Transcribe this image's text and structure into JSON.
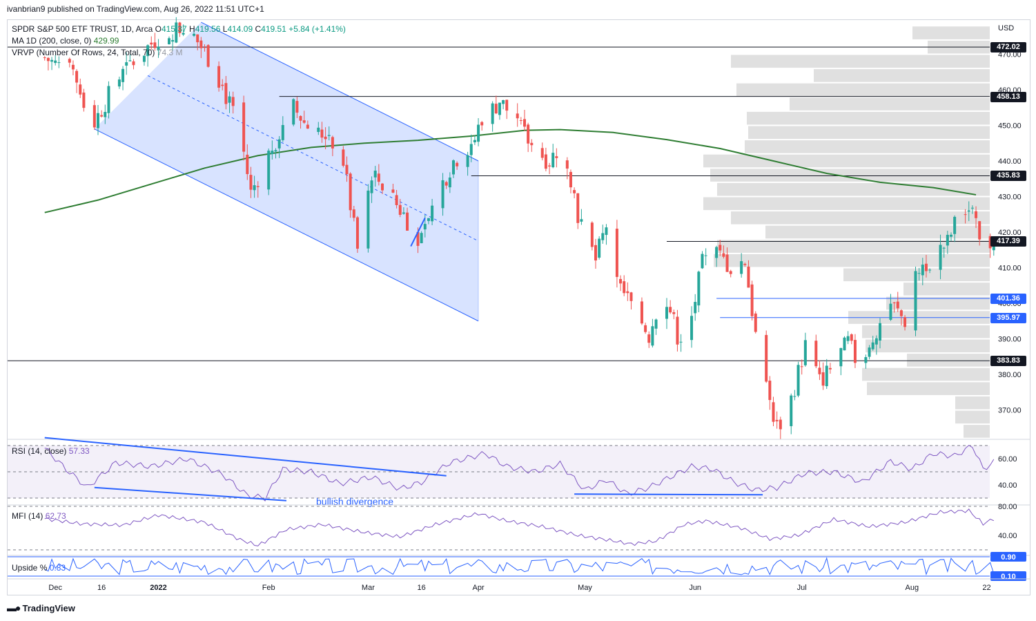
{
  "header": {
    "publisher": "ivanbrian9 published on TradingView.com, Aug 26, 2022 11:51 UTC+1"
  },
  "legend": {
    "symbol": "SPDR S&P 500 ETF TRUST, 1D, Arca",
    "o_label": "O",
    "o_value": "415.37",
    "h_label": "H",
    "h_value": "419.56",
    "l_label": "L",
    "l_value": "414.09",
    "c_label": "C",
    "c_value": "419.51",
    "change": "+5.84 (+1.41%)",
    "ma_label": "MA 1D (200, close, 0)",
    "ma_value": "429.99",
    "vrvp_label": "VRVP (Number Of Rows, 24, Total, 70)",
    "vrvp_value": "74.3 M",
    "rsi_label": "RSI (14, close)",
    "rsi_value": "57.33",
    "mfi_label": "MFI (14)",
    "mfi_value": "62.73",
    "upside_label": "Upside %",
    "upside_value": "0.83"
  },
  "branding": {
    "name": "TradingView",
    "logo_icon": "tradingview-logo-icon"
  },
  "colors": {
    "up": "#26a69a",
    "down": "#ef5350",
    "ma": "#2e7d32",
    "channel": "#2962ff",
    "channel_fill": "#2962ff",
    "oscillator": "#7e57c2",
    "vrvp": "#e0e0e0",
    "level": "#131722"
  },
  "chart_data": {
    "type": "candlestick",
    "currency": "USD",
    "price_axis": {
      "ticks": [
        "470.00",
        "460.00",
        "450.00",
        "440.00",
        "430.00",
        "420.00",
        "410.00",
        "400.00",
        "390.00",
        "380.00",
        "370.00"
      ]
    },
    "time_axis": {
      "labels": [
        {
          "label": "Dec",
          "day": 3
        },
        {
          "label": "16",
          "day": 16
        },
        {
          "label": "2022",
          "day": 32
        },
        {
          "label": "Feb",
          "day": 63
        },
        {
          "label": "Mar",
          "day": 91
        },
        {
          "label": "16",
          "day": 106
        },
        {
          "label": "Apr",
          "day": 122
        },
        {
          "label": "May",
          "day": 152
        },
        {
          "label": "Jun",
          "day": 183
        },
        {
          "label": "Jul",
          "day": 213
        },
        {
          "label": "Aug",
          "day": 244
        },
        {
          "label": "22",
          "day": 265
        }
      ]
    },
    "levels": [
      {
        "price": 472.02,
        "label": "472.02",
        "style": "black",
        "from_day": 0
      },
      {
        "price": 458.13,
        "label": "458.13",
        "style": "black",
        "from_day": 66
      },
      {
        "price": 435.83,
        "label": "435.83",
        "style": "black",
        "from_day": 120
      },
      {
        "price": 417.39,
        "label": "417.39",
        "style": "black",
        "from_day": 175
      },
      {
        "price": 401.36,
        "label": "401.36",
        "style": "blue",
        "from_day": 189
      },
      {
        "price": 395.97,
        "label": "395.97",
        "style": "blue",
        "from_day": 190
      },
      {
        "price": 383.83,
        "label": "383.83",
        "style": "black",
        "from_day": 0
      }
    ],
    "channel": {
      "upper": [
        {
          "day": 44,
          "price": 479
        },
        {
          "day": 122,
          "price": 440
        }
      ],
      "lower": [
        {
          "day": 14,
          "price": 449
        },
        {
          "day": 122,
          "price": 395
        }
      ],
      "mid": [
        {
          "day": 29,
          "price": 464
        },
        {
          "day": 122,
          "price": 417.5
        }
      ]
    },
    "trend_segment": [
      {
        "day": 103,
        "price": 416
      },
      {
        "day": 107,
        "price": 424
      }
    ],
    "moving_average_200": [
      {
        "day": 0,
        "price": 425.5
      },
      {
        "day": 15,
        "price": 429
      },
      {
        "day": 30,
        "price": 433.5
      },
      {
        "day": 45,
        "price": 438
      },
      {
        "day": 60,
        "price": 441.5
      },
      {
        "day": 75,
        "price": 443.8
      },
      {
        "day": 90,
        "price": 445
      },
      {
        "day": 105,
        "price": 445.8
      },
      {
        "day": 120,
        "price": 447
      },
      {
        "day": 135,
        "price": 448.6
      },
      {
        "day": 145,
        "price": 448.8
      },
      {
        "day": 160,
        "price": 448
      },
      {
        "day": 175,
        "price": 446
      },
      {
        "day": 190,
        "price": 443.5
      },
      {
        "day": 205,
        "price": 440
      },
      {
        "day": 220,
        "price": 436.5
      },
      {
        "day": 235,
        "price": 434
      },
      {
        "day": 250,
        "price": 432.5
      },
      {
        "day": 262,
        "price": 430.5
      }
    ],
    "vrvp_rows": [
      {
        "low": 474,
        "high": 478,
        "width": 112
      },
      {
        "low": 470,
        "high": 474,
        "width": 90
      },
      {
        "low": 466,
        "high": 470,
        "width": 375
      },
      {
        "low": 462,
        "high": 466,
        "width": 255
      },
      {
        "low": 458,
        "high": 462,
        "width": 367
      },
      {
        "low": 454,
        "high": 458,
        "width": 290
      },
      {
        "low": 450,
        "high": 454,
        "width": 352
      },
      {
        "low": 446,
        "high": 450,
        "width": 350
      },
      {
        "low": 442,
        "high": 446,
        "width": 355
      },
      {
        "low": 438,
        "high": 442,
        "width": 415
      },
      {
        "low": 434,
        "high": 438,
        "width": 405
      },
      {
        "low": 430,
        "high": 434,
        "width": 395
      },
      {
        "low": 426,
        "high": 430,
        "width": 415
      },
      {
        "low": 422,
        "high": 426,
        "width": 375
      },
      {
        "low": 418,
        "high": 422,
        "width": 325
      },
      {
        "low": 414,
        "high": 418,
        "width": 395
      },
      {
        "low": 410,
        "high": 414,
        "width": 400
      },
      {
        "low": 406,
        "high": 410,
        "width": 212
      },
      {
        "low": 402,
        "high": 406,
        "width": 125
      },
      {
        "low": 398,
        "high": 402,
        "width": 150
      },
      {
        "low": 394,
        "high": 398,
        "width": 205
      },
      {
        "low": 390,
        "high": 394,
        "width": 185
      },
      {
        "low": 386,
        "high": 390,
        "width": 180
      },
      {
        "low": 382,
        "high": 386,
        "width": 120
      },
      {
        "low": 378,
        "high": 382,
        "width": 185
      },
      {
        "low": 374,
        "high": 378,
        "width": 178
      },
      {
        "low": 370,
        "high": 374,
        "width": 50
      },
      {
        "low": 366,
        "high": 370,
        "width": 50
      },
      {
        "low": 362,
        "high": 366,
        "width": 38
      }
    ],
    "price_anchors": [
      {
        "day": 0,
        "price": 469
      },
      {
        "day": 7,
        "price": 465
      },
      {
        "day": 14,
        "price": 451
      },
      {
        "day": 20,
        "price": 462
      },
      {
        "day": 25,
        "price": 468
      },
      {
        "day": 32,
        "price": 475
      },
      {
        "day": 40,
        "price": 478
      },
      {
        "day": 48,
        "price": 466
      },
      {
        "day": 55,
        "price": 448
      },
      {
        "day": 58,
        "price": 431
      },
      {
        "day": 64,
        "price": 444
      },
      {
        "day": 70,
        "price": 455
      },
      {
        "day": 76,
        "price": 447
      },
      {
        "day": 80,
        "price": 448
      },
      {
        "day": 84,
        "price": 440
      },
      {
        "day": 88,
        "price": 415
      },
      {
        "day": 92,
        "price": 437
      },
      {
        "day": 96,
        "price": 432
      },
      {
        "day": 101,
        "price": 425
      },
      {
        "day": 106,
        "price": 417
      },
      {
        "day": 110,
        "price": 430
      },
      {
        "day": 115,
        "price": 440
      },
      {
        "day": 120,
        "price": 445
      },
      {
        "day": 124,
        "price": 452
      },
      {
        "day": 128,
        "price": 457
      },
      {
        "day": 132,
        "price": 452
      },
      {
        "day": 137,
        "price": 444
      },
      {
        "day": 142,
        "price": 440
      },
      {
        "day": 146,
        "price": 446
      },
      {
        "day": 150,
        "price": 425
      },
      {
        "day": 155,
        "price": 412
      },
      {
        "day": 158,
        "price": 422
      },
      {
        "day": 162,
        "price": 404
      },
      {
        "day": 166,
        "price": 398
      },
      {
        "day": 170,
        "price": 391
      },
      {
        "day": 174,
        "price": 405
      },
      {
        "day": 178,
        "price": 391
      },
      {
        "day": 181,
        "price": 391
      },
      {
        "day": 185,
        "price": 411
      },
      {
        "day": 189,
        "price": 414
      },
      {
        "day": 193,
        "price": 410
      },
      {
        "day": 197,
        "price": 412
      },
      {
        "day": 200,
        "price": 391
      },
      {
        "day": 203,
        "price": 376
      },
      {
        "day": 206,
        "price": 365
      },
      {
        "day": 210,
        "price": 373
      },
      {
        "day": 214,
        "price": 388
      },
      {
        "day": 218,
        "price": 378
      },
      {
        "day": 222,
        "price": 383
      },
      {
        "day": 226,
        "price": 389
      },
      {
        "day": 230,
        "price": 380
      },
      {
        "day": 234,
        "price": 393
      },
      {
        "day": 238,
        "price": 400
      },
      {
        "day": 242,
        "price": 395
      },
      {
        "day": 246,
        "price": 410
      },
      {
        "day": 250,
        "price": 413
      },
      {
        "day": 254,
        "price": 417
      },
      {
        "day": 258,
        "price": 427
      },
      {
        "day": 261,
        "price": 425
      },
      {
        "day": 264,
        "price": 413
      },
      {
        "day": 267,
        "price": 419.5
      }
    ],
    "rsi_anchors": [
      {
        "day": 0,
        "rsi": 68
      },
      {
        "day": 6,
        "rsi": 52
      },
      {
        "day": 12,
        "rsi": 38
      },
      {
        "day": 20,
        "rsi": 57
      },
      {
        "day": 30,
        "rsi": 54
      },
      {
        "day": 40,
        "rsi": 60
      },
      {
        "day": 50,
        "rsi": 48
      },
      {
        "day": 57,
        "rsi": 32
      },
      {
        "day": 62,
        "rsi": 30
      },
      {
        "day": 67,
        "rsi": 52
      },
      {
        "day": 75,
        "rsi": 50
      },
      {
        "day": 83,
        "rsi": 41
      },
      {
        "day": 92,
        "rsi": 46
      },
      {
        "day": 100,
        "rsi": 37
      },
      {
        "day": 106,
        "rsi": 42
      },
      {
        "day": 114,
        "rsi": 57
      },
      {
        "day": 124,
        "rsi": 64
      },
      {
        "day": 130,
        "rsi": 54
      },
      {
        "day": 138,
        "rsi": 50
      },
      {
        "day": 145,
        "rsi": 56
      },
      {
        "day": 152,
        "rsi": 36
      },
      {
        "day": 158,
        "rsi": 44
      },
      {
        "day": 164,
        "rsi": 33
      },
      {
        "day": 170,
        "rsi": 38
      },
      {
        "day": 176,
        "rsi": 46
      },
      {
        "day": 182,
        "rsi": 54
      },
      {
        "day": 188,
        "rsi": 52
      },
      {
        "day": 194,
        "rsi": 42
      },
      {
        "day": 200,
        "rsi": 36
      },
      {
        "day": 206,
        "rsi": 38
      },
      {
        "day": 214,
        "rsi": 49
      },
      {
        "day": 222,
        "rsi": 50
      },
      {
        "day": 230,
        "rsi": 42
      },
      {
        "day": 238,
        "rsi": 58
      },
      {
        "day": 244,
        "rsi": 52
      },
      {
        "day": 250,
        "rsi": 64
      },
      {
        "day": 256,
        "rsi": 62
      },
      {
        "day": 261,
        "rsi": 70
      },
      {
        "day": 264,
        "rsi": 52
      },
      {
        "day": 267,
        "rsi": 57.33
      }
    ],
    "mfi_anchors": [
      {
        "day": 0,
        "mfi": 63
      },
      {
        "day": 10,
        "mfi": 56
      },
      {
        "day": 22,
        "mfi": 54
      },
      {
        "day": 32,
        "mfi": 68
      },
      {
        "day": 45,
        "mfi": 58
      },
      {
        "day": 55,
        "mfi": 34
      },
      {
        "day": 60,
        "mfi": 26
      },
      {
        "day": 68,
        "mfi": 48
      },
      {
        "day": 78,
        "mfi": 55
      },
      {
        "day": 90,
        "mfi": 44
      },
      {
        "day": 100,
        "mfi": 38
      },
      {
        "day": 110,
        "mfi": 55
      },
      {
        "day": 122,
        "mfi": 70
      },
      {
        "day": 130,
        "mfi": 60
      },
      {
        "day": 140,
        "mfi": 52
      },
      {
        "day": 150,
        "mfi": 40
      },
      {
        "day": 158,
        "mfi": 34
      },
      {
        "day": 165,
        "mfi": 28
      },
      {
        "day": 172,
        "mfi": 32
      },
      {
        "day": 180,
        "mfi": 55
      },
      {
        "day": 186,
        "mfi": 60
      },
      {
        "day": 196,
        "mfi": 50
      },
      {
        "day": 204,
        "mfi": 35
      },
      {
        "day": 212,
        "mfi": 40
      },
      {
        "day": 222,
        "mfi": 62
      },
      {
        "day": 232,
        "mfi": 52
      },
      {
        "day": 242,
        "mfi": 58
      },
      {
        "day": 252,
        "mfi": 72
      },
      {
        "day": 260,
        "mfi": 74
      },
      {
        "day": 264,
        "mfi": 56
      },
      {
        "day": 267,
        "mfi": 62.73
      }
    ],
    "rsi_trendlines": [
      {
        "from": {
          "day": 0,
          "rsi": 76
        },
        "to": {
          "day": 113,
          "rsi": 47
        }
      },
      {
        "from": {
          "day": 14,
          "rsi": 38
        },
        "to": {
          "day": 68,
          "rsi": 28
        }
      },
      {
        "from": {
          "day": 149,
          "rsi": 33
        },
        "to": {
          "day": 202,
          "rsi": 32.5
        }
      }
    ],
    "rsi_levels": [
      70,
      50,
      30
    ],
    "rsi_ticks": [
      "60.00",
      "40.00"
    ],
    "mfi_ticks": [
      "80.00",
      "40.00"
    ],
    "upside_ticks": [
      "0.90",
      "0.10"
    ],
    "annotation": "bullish divergence"
  }
}
